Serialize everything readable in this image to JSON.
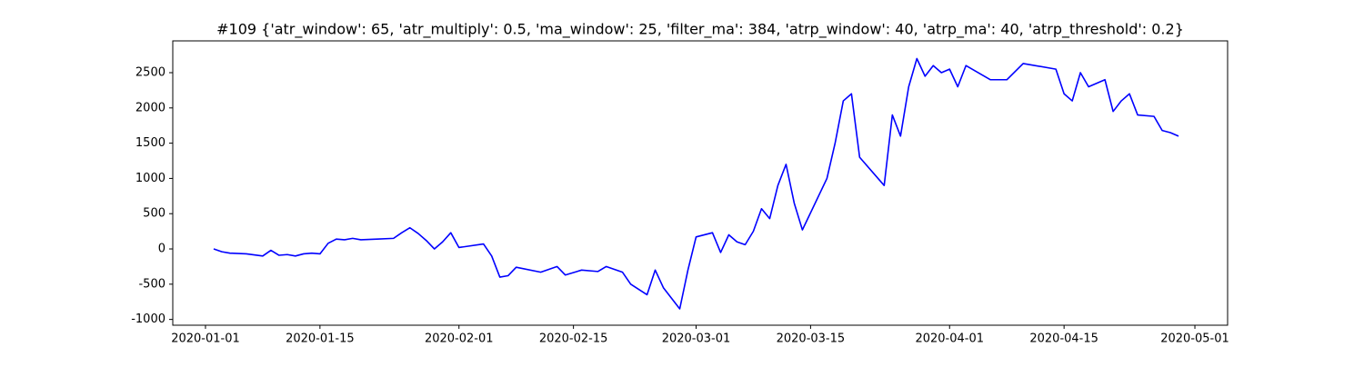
{
  "chart_data": {
    "type": "line",
    "title": "#109 {'atr_window': 65, 'atr_multiply': 0.5, 'ma_window': 25, 'filter_ma': 384, 'atrp_window': 40, 'atrp_ma': 40, 'atrp_threshold': 0.2}",
    "x": [
      "2020-01-02",
      "2020-01-03",
      "2020-01-04",
      "2020-01-06",
      "2020-01-08",
      "2020-01-09",
      "2020-01-10",
      "2020-01-11",
      "2020-01-12",
      "2020-01-13",
      "2020-01-14",
      "2020-01-15",
      "2020-01-16",
      "2020-01-17",
      "2020-01-18",
      "2020-01-19",
      "2020-01-20",
      "2020-01-22",
      "2020-01-24",
      "2020-01-25",
      "2020-01-26",
      "2020-01-27",
      "2020-01-28",
      "2020-01-29",
      "2020-01-30",
      "2020-01-31",
      "2020-02-01",
      "2020-02-04",
      "2020-02-05",
      "2020-02-06",
      "2020-02-07",
      "2020-02-08",
      "2020-02-11",
      "2020-02-13",
      "2020-02-14",
      "2020-02-16",
      "2020-02-18",
      "2020-02-19",
      "2020-02-21",
      "2020-02-22",
      "2020-02-24",
      "2020-02-25",
      "2020-02-26",
      "2020-02-27",
      "2020-02-28",
      "2020-02-29",
      "2020-03-01",
      "2020-03-03",
      "2020-03-04",
      "2020-03-05",
      "2020-03-06",
      "2020-03-07",
      "2020-03-08",
      "2020-03-09",
      "2020-03-10",
      "2020-03-11",
      "2020-03-12",
      "2020-03-13",
      "2020-03-14",
      "2020-03-17",
      "2020-03-18",
      "2020-03-19",
      "2020-03-20",
      "2020-03-21",
      "2020-03-24",
      "2020-03-25",
      "2020-03-26",
      "2020-03-27",
      "2020-03-28",
      "2020-03-29",
      "2020-03-30",
      "2020-03-31",
      "2020-04-01",
      "2020-04-02",
      "2020-04-03",
      "2020-04-06",
      "2020-04-08",
      "2020-04-10",
      "2020-04-14",
      "2020-04-15",
      "2020-04-16",
      "2020-04-17",
      "2020-04-18",
      "2020-04-20",
      "2020-04-21",
      "2020-04-22",
      "2020-04-23",
      "2020-04-24",
      "2020-04-26",
      "2020-04-27",
      "2020-04-28",
      "2020-04-29"
    ],
    "series": [
      {
        "color": "#0000ff",
        "values": [
          0,
          -40,
          -60,
          -70,
          -100,
          -20,
          -90,
          -80,
          -100,
          -70,
          -60,
          -70,
          80,
          140,
          130,
          150,
          130,
          140,
          150,
          230,
          300,
          220,
          120,
          0,
          100,
          230,
          20,
          70,
          -100,
          -400,
          -380,
          -260,
          -330,
          -250,
          -370,
          -300,
          -320,
          -250,
          -330,
          -500,
          -650,
          -300,
          -550,
          -700,
          -850,
          -300,
          170,
          230,
          -50,
          200,
          100,
          60,
          250,
          570,
          430,
          900,
          1200,
          650,
          270,
          1000,
          1500,
          2100,
          2200,
          1300,
          900,
          1900,
          1600,
          2300,
          2700,
          2450,
          2600,
          2500,
          2550,
          2300,
          2600,
          2400,
          2400,
          2630,
          2550,
          2200,
          2100,
          2500,
          2300,
          2400,
          1950,
          2100,
          2200,
          1900,
          1880,
          1680,
          1650,
          1600
        ]
      }
    ],
    "xlim": [
      "2019-12-28",
      "2020-05-05"
    ],
    "xticks": [
      "2020-01-01",
      "2020-01-15",
      "2020-02-01",
      "2020-02-15",
      "2020-03-01",
      "2020-03-15",
      "2020-04-01",
      "2020-04-15",
      "2020-05-01"
    ],
    "ylim": [
      -1082,
      2951
    ],
    "yticks": [
      -1000,
      -500,
      0,
      500,
      1000,
      1500,
      2000,
      2500
    ],
    "grid": false
  }
}
